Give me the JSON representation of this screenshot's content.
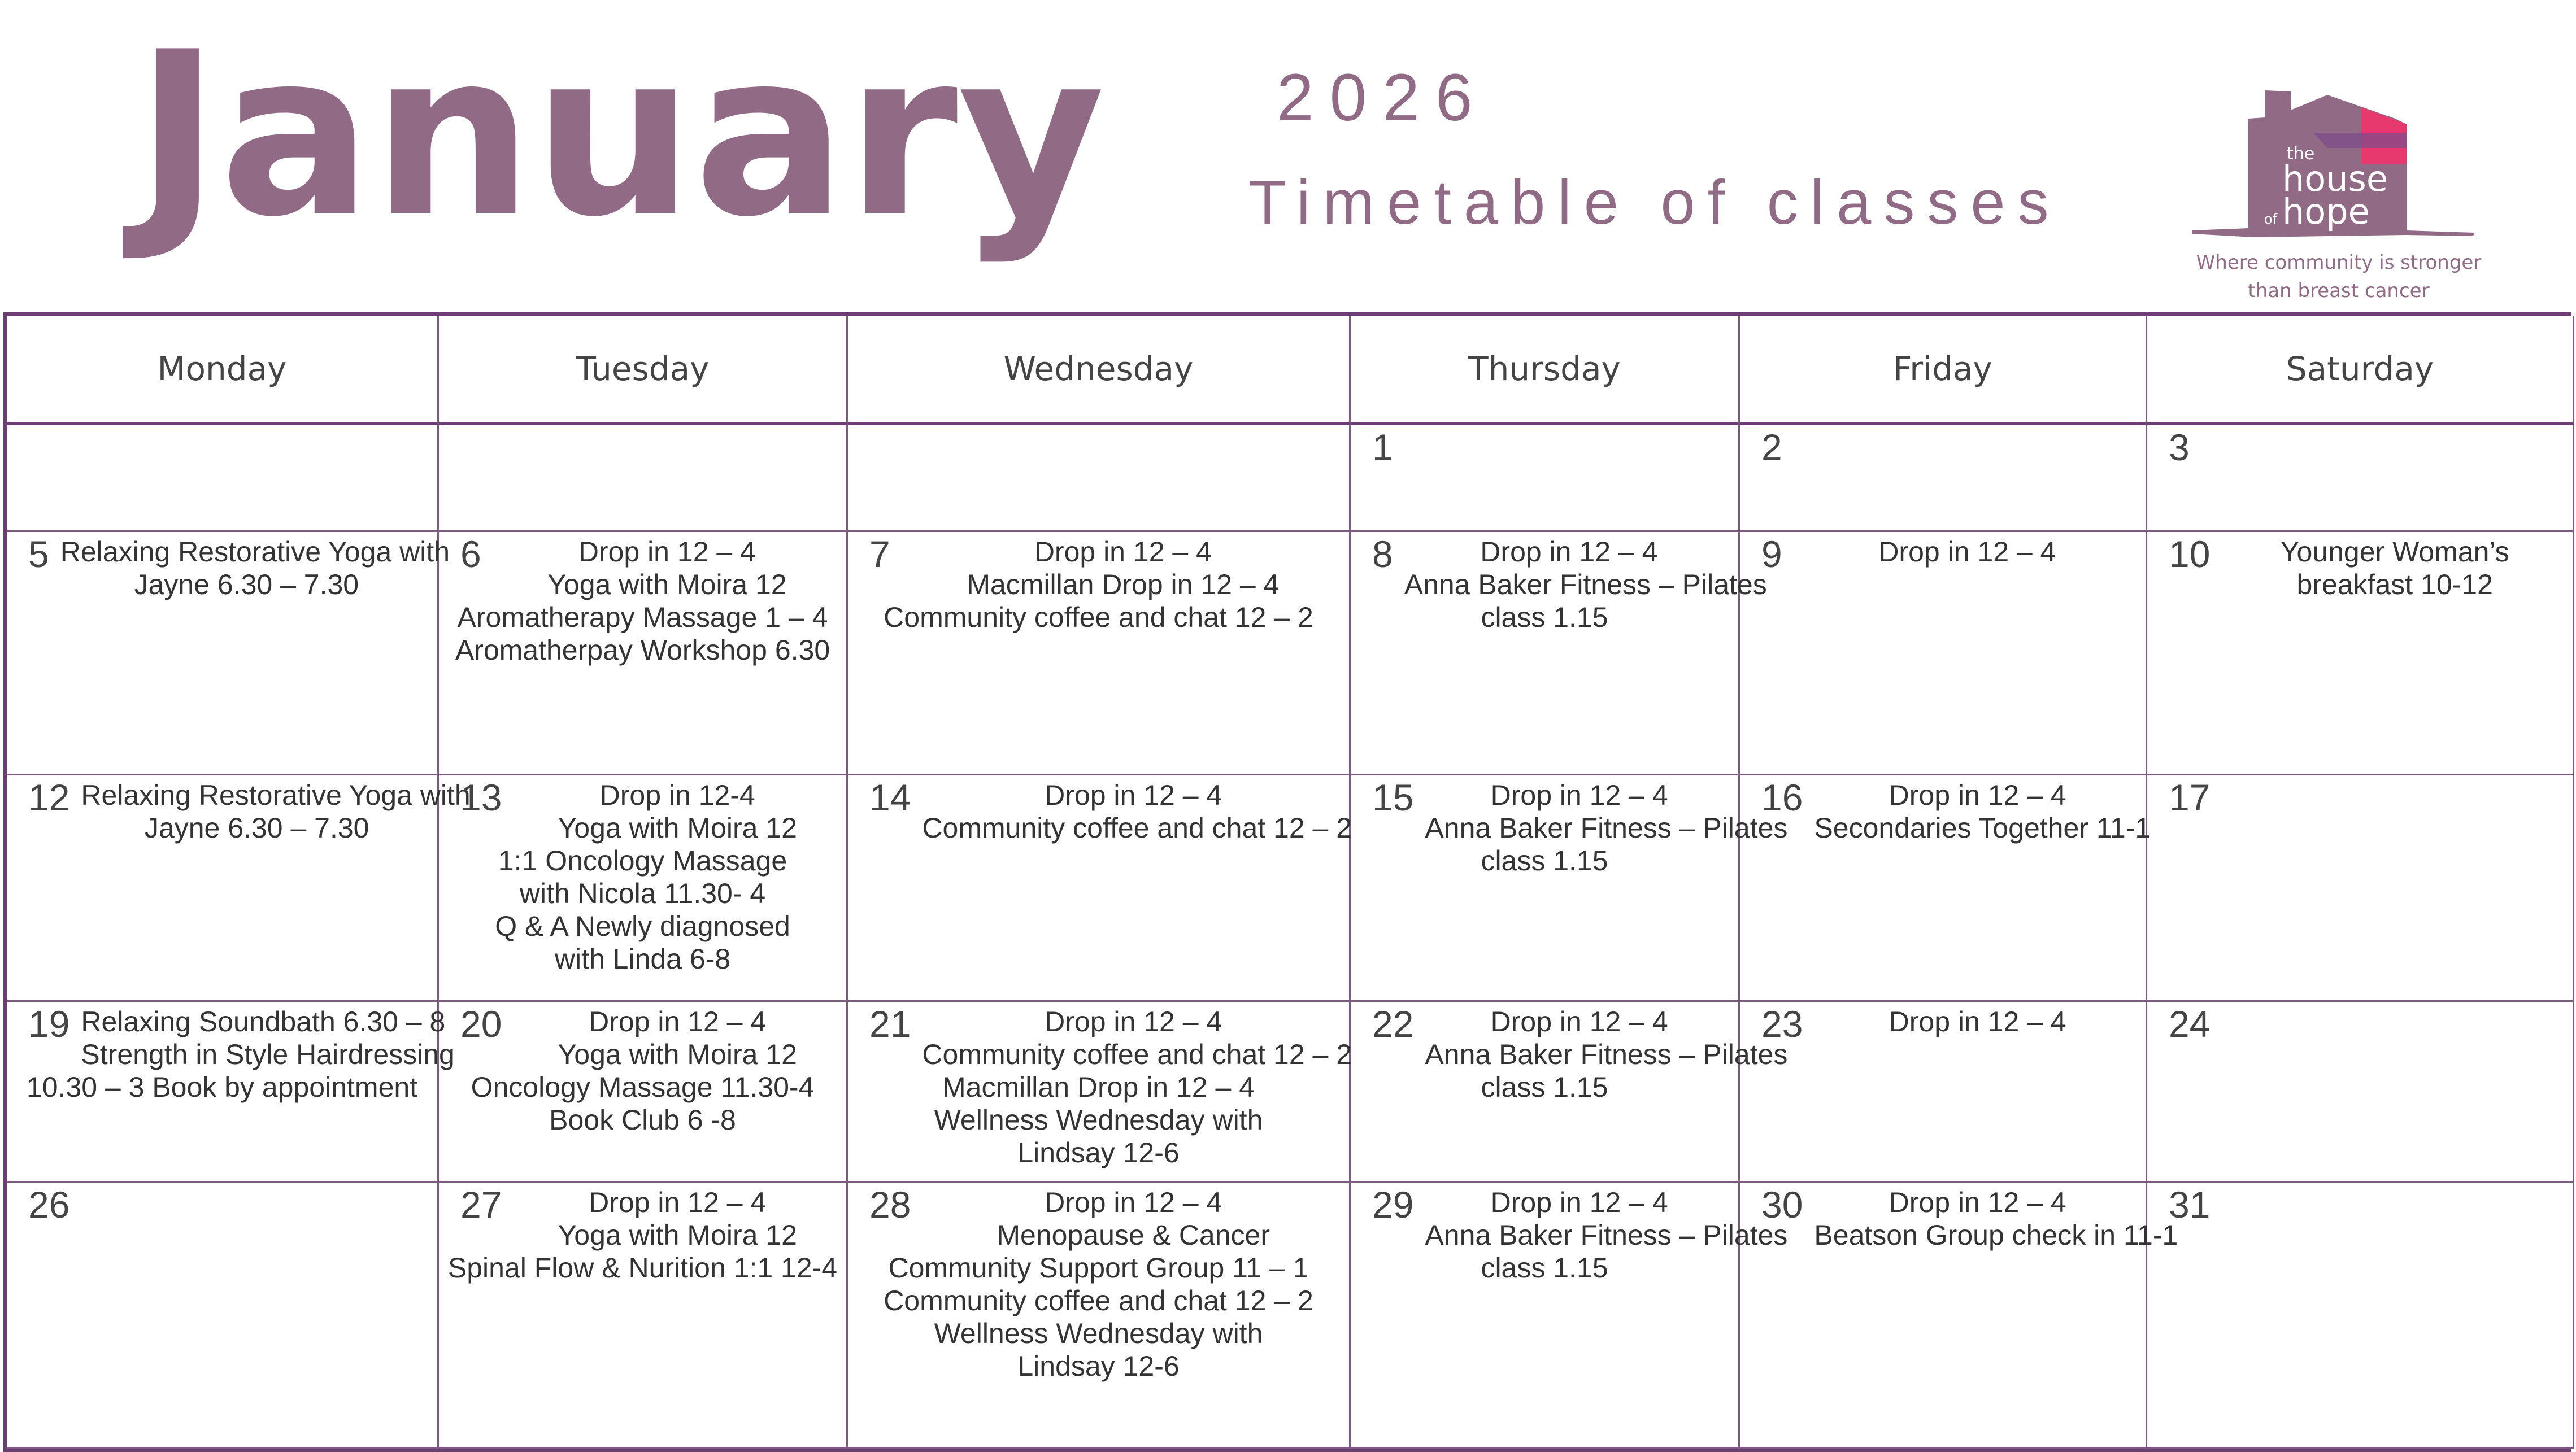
{
  "header": {
    "month": "January",
    "year": "2026",
    "subtitle": "Timetable of classes",
    "logo_text": "the house of hope",
    "tagline_line1": "Where community is stronger",
    "tagline_line2": "than breast cancer"
  },
  "colors": {
    "accent": "#916a86",
    "border": "#6b3f72",
    "logo_pink": "#e8396e"
  },
  "days": [
    "Monday",
    "Tuesday",
    "Wednesday",
    "Thursday",
    "Friday",
    "Saturday"
  ],
  "weeks": [
    [
      {
        "day": "",
        "lines": []
      },
      {
        "day": "",
        "lines": []
      },
      {
        "day": "",
        "lines": []
      },
      {
        "day": "1",
        "lines": []
      },
      {
        "day": "2",
        "lines": []
      },
      {
        "day": "3",
        "lines": []
      }
    ],
    [
      {
        "day": "5",
        "lines": [
          "Relaxing Restorative Yoga with",
          "Jayne 6.30 – 7.30"
        ]
      },
      {
        "day": "6",
        "lines": [
          "Drop in 12 – 4",
          "Yoga with Moira 12",
          "Aromatherapy Massage 1 – 4",
          "Aromatherpay Workshop 6.30"
        ]
      },
      {
        "day": "7",
        "lines": [
          "Drop in 12 – 4",
          "Macmillan Drop in 12 – 4",
          "Community coffee and chat 12 – 2"
        ]
      },
      {
        "day": "8",
        "lines": [
          "Drop in 12 – 4",
          "Anna Baker Fitness – Pilates",
          "class 1.15"
        ]
      },
      {
        "day": "9",
        "lines": [
          "Drop in 12 – 4"
        ]
      },
      {
        "day": "10",
        "lines": [
          "Younger Woman’s",
          "breakfast 10-12"
        ]
      }
    ],
    [
      {
        "day": "12",
        "lines": [
          "Relaxing Restorative Yoga with",
          "Jayne 6.30 – 7.30"
        ]
      },
      {
        "day": "13",
        "lines": [
          "Drop in 12-4",
          "Yoga with Moira 12",
          "1:1 Oncology Massage",
          "with Nicola 11.30- 4",
          "Q & A Newly diagnosed",
          "with Linda 6-8"
        ]
      },
      {
        "day": "14",
        "lines": [
          "Drop in 12 – 4",
          "Community coffee and chat 12 – 2"
        ]
      },
      {
        "day": "15",
        "lines": [
          "Drop in 12 – 4",
          "Anna Baker Fitness – Pilates",
          "class 1.15"
        ]
      },
      {
        "day": "16",
        "lines": [
          "Drop in 12 – 4",
          "Secondaries Together 11-1"
        ]
      },
      {
        "day": "17",
        "lines": []
      }
    ],
    [
      {
        "day": "19",
        "lines": [
          "Relaxing Soundbath 6.30 – 8",
          "Strength in Style Hairdressing",
          "10.30 – 3 Book by appointment"
        ]
      },
      {
        "day": "20",
        "lines": [
          "Drop in 12 – 4",
          "Yoga with Moira 12",
          "Oncology Massage 11.30-4",
          "Book Club 6 -8"
        ]
      },
      {
        "day": "21",
        "lines": [
          "Drop in 12 – 4",
          "Community coffee and chat 12 – 2",
          "Macmillan Drop in 12 – 4",
          "Wellness Wednesday with",
          "Lindsay 12-6"
        ]
      },
      {
        "day": "22",
        "lines": [
          "Drop in 12 – 4",
          "Anna Baker Fitness – Pilates",
          "class 1.15"
        ]
      },
      {
        "day": "23",
        "lines": [
          "Drop in 12 – 4"
        ]
      },
      {
        "day": "24",
        "lines": []
      }
    ],
    [
      {
        "day": "26",
        "lines": []
      },
      {
        "day": "27",
        "lines": [
          "Drop in 12 – 4",
          "Yoga with Moira 12",
          "Spinal Flow & Nurition 1:1 12-4"
        ]
      },
      {
        "day": "28",
        "lines": [
          "Drop in 12 – 4",
          "Menopause & Cancer",
          "Community Support Group 11 – 1",
          "Community coffee and chat 12 – 2",
          "Wellness Wednesday with",
          "Lindsay 12-6"
        ]
      },
      {
        "day": "29",
        "lines": [
          "Drop in 12 – 4",
          "Anna Baker Fitness – Pilates",
          "class 1.15"
        ]
      },
      {
        "day": "30",
        "lines": [
          "Drop in 12 – 4",
          "Beatson Group check in 11-1"
        ]
      },
      {
        "day": "31",
        "lines": []
      }
    ]
  ]
}
